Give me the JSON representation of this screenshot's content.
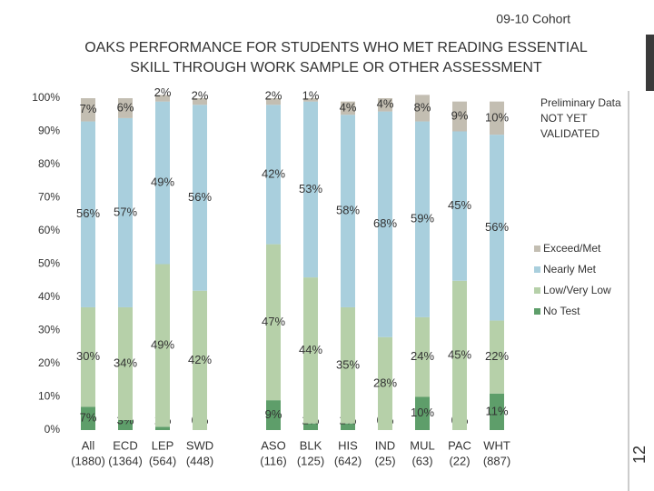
{
  "cohort": "09-10 Cohort",
  "slide_number": "12",
  "chart_data": {
    "type": "stacked_bar",
    "title_lines": [
      "OAKS PERFORMANCE FOR STUDENTS WHO MET READING ESSENTIAL",
      "SKILL THROUGH WORK SAMPLE OR OTHER ASSESSMENT"
    ],
    "annotation_lines": [
      "Preliminary Data",
      "NOT YET",
      "VALIDATED"
    ],
    "categories": [
      "All",
      "ECD",
      "LEP",
      "SWD",
      "ASO",
      "BLK",
      "HIS",
      "IND",
      "MUL",
      "PAC",
      "WHT"
    ],
    "category_counts": [
      "(1880)",
      "(1364)",
      "(564)",
      "(448)",
      "(116)",
      "(125)",
      "(642)",
      "(25)",
      "(63)",
      "(22)",
      "(887)"
    ],
    "ylim": [
      0,
      100
    ],
    "yticks": [
      {
        "value": 0,
        "label": "0%"
      },
      {
        "value": 10,
        "label": "10%"
      },
      {
        "value": 20,
        "label": "20%"
      },
      {
        "value": 30,
        "label": "30%"
      },
      {
        "value": 40,
        "label": "40%"
      },
      {
        "value": 50,
        "label": "50%"
      },
      {
        "value": 60,
        "label": "60%"
      },
      {
        "value": 70,
        "label": "70%"
      },
      {
        "value": 80,
        "label": "80%"
      },
      {
        "value": 90,
        "label": "90%"
      },
      {
        "value": 100,
        "label": "100%"
      }
    ],
    "legend_position": "right",
    "series": [
      {
        "name": "No Test",
        "color": "#5e9e6a",
        "values": [
          7,
          3,
          1,
          0,
          9,
          2,
          2,
          0,
          10,
          0,
          11
        ],
        "value_labels": [
          "7%",
          "3%",
          "1%",
          "0%",
          "9%",
          "2%",
          "2%",
          "0%",
          "10%",
          "0%",
          "11%"
        ]
      },
      {
        "name": "Low/Very Low",
        "color": "#b6d0a9",
        "values": [
          30,
          34,
          49,
          42,
          47,
          44,
          35,
          28,
          24,
          45,
          22
        ],
        "value_labels": [
          "30%",
          "34%",
          "49%",
          "42%",
          "47%",
          "44%",
          "35%",
          "28%",
          "24%",
          "45%",
          "22%"
        ]
      },
      {
        "name": "Nearly Met",
        "color": "#a9cfdd",
        "values": [
          56,
          57,
          49,
          56,
          42,
          53,
          58,
          68,
          59,
          45,
          56
        ],
        "value_labels": [
          "56%",
          "57%",
          "49%",
          "56%",
          "42%",
          "53%",
          "58%",
          "68%",
          "59%",
          "45%",
          "56%"
        ]
      },
      {
        "name": "Exceed/Met",
        "color": "#c3beb2",
        "values": [
          7,
          6,
          2,
          2,
          2,
          1,
          4,
          4,
          8,
          9,
          10
        ],
        "value_labels": [
          "7%",
          "6%",
          "2%",
          "2%",
          "2%",
          "1%",
          "4%",
          "4%",
          "8%",
          "9%",
          "10%"
        ]
      }
    ]
  }
}
